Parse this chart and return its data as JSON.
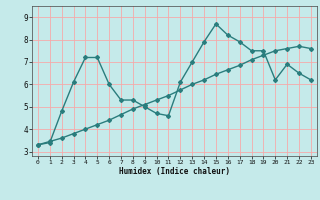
{
  "xlabel": "Humidex (Indice chaleur)",
  "xlim": [
    -0.5,
    23.5
  ],
  "ylim": [
    2.8,
    9.5
  ],
  "xticks": [
    0,
    1,
    2,
    3,
    4,
    5,
    6,
    7,
    8,
    9,
    10,
    11,
    12,
    13,
    14,
    15,
    16,
    17,
    18,
    19,
    20,
    21,
    22,
    23
  ],
  "yticks": [
    3,
    4,
    5,
    6,
    7,
    8,
    9
  ],
  "bg_color": "#c5eaea",
  "grid_color": "#f5aaaa",
  "line_color": "#2a7d7d",
  "line_width": 1.0,
  "marker": "D",
  "marker_size": 2.0,
  "series1_x": [
    0,
    1,
    2,
    3,
    4,
    5,
    6,
    7,
    8,
    9,
    10,
    11,
    12,
    13,
    14,
    15,
    16,
    17,
    18,
    19,
    20,
    21,
    22,
    23
  ],
  "series1_y": [
    3.3,
    3.4,
    4.8,
    6.1,
    7.2,
    7.2,
    6.0,
    5.3,
    5.3,
    5.0,
    4.7,
    4.6,
    6.1,
    7.0,
    7.9,
    8.7,
    8.2,
    7.9,
    7.5,
    7.5,
    6.2,
    6.9,
    6.5,
    6.2
  ],
  "series2_x": [
    0,
    1,
    2,
    3,
    4,
    5,
    6,
    7,
    8,
    9,
    10,
    11,
    12,
    13,
    14,
    15,
    16,
    17,
    18,
    19,
    20,
    21,
    22,
    23
  ],
  "series2_y": [
    3.3,
    3.45,
    3.6,
    3.8,
    4.0,
    4.2,
    4.4,
    4.65,
    4.9,
    5.1,
    5.3,
    5.5,
    5.75,
    6.0,
    6.2,
    6.45,
    6.65,
    6.85,
    7.1,
    7.3,
    7.5,
    7.6,
    7.7,
    7.6
  ]
}
